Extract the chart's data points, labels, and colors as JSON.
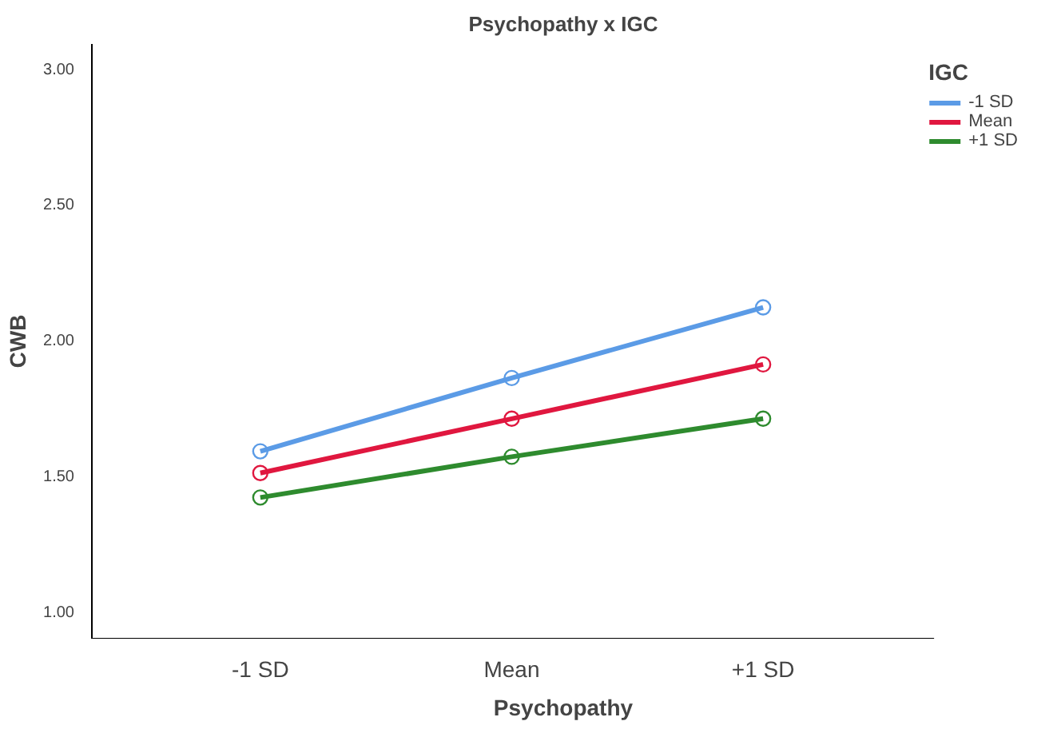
{
  "chart_data": {
    "type": "line",
    "title": "Psychopathy x IGC",
    "xlabel": "Psychopathy",
    "ylabel": "CWB",
    "legend_title": "IGC",
    "categories": [
      "-1 SD",
      "Mean",
      "+1 SD"
    ],
    "series": [
      {
        "name": "-1 SD",
        "color": "#5b9be6",
        "values": [
          1.59,
          1.86,
          2.12
        ]
      },
      {
        "name": "Mean",
        "color": "#e0173f",
        "values": [
          1.51,
          1.71,
          1.91
        ]
      },
      {
        "name": "+1 SD",
        "color": "#2e8b2e",
        "values": [
          1.42,
          1.57,
          1.71
        ]
      }
    ],
    "ylim": [
      0.9,
      3.09
    ],
    "yticks": [
      {
        "value": 1,
        "label": "1.00"
      },
      {
        "value": 1.5,
        "label": "1.50"
      },
      {
        "value": 2,
        "label": "2.00"
      },
      {
        "value": 2.5,
        "label": "2.50"
      },
      {
        "value": 3,
        "label": "3.00"
      }
    ],
    "grid": false,
    "legend": "top right",
    "marker": "circle",
    "line_style": "solid"
  }
}
